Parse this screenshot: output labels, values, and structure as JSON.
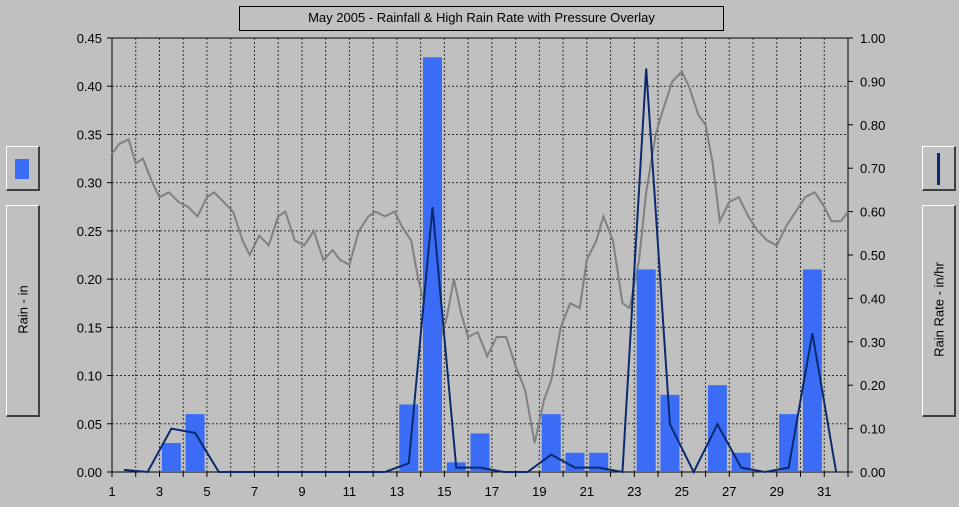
{
  "chart_data": {
    "type": "bar",
    "title": "May 2005 - Rainfall & High Rain Rate with Pressure Overlay",
    "left_axis_label": "Rain - in",
    "right_axis_label": "Rain Rate - in/hr",
    "x_ticks": [
      "1",
      "3",
      "5",
      "7",
      "9",
      "11",
      "13",
      "15",
      "17",
      "19",
      "21",
      "23",
      "25",
      "27",
      "29",
      "31"
    ],
    "left_ticks": [
      "0.00",
      "0.05",
      "0.10",
      "0.15",
      "0.20",
      "0.25",
      "0.30",
      "0.35",
      "0.40",
      "0.45"
    ],
    "right_ticks": [
      "0.00",
      "0.10",
      "0.20",
      "0.30",
      "0.40",
      "0.50",
      "0.60",
      "0.70",
      "0.80",
      "0.90",
      "1.00"
    ],
    "xlim": [
      1,
      32
    ],
    "ylim_left": [
      0,
      0.45
    ],
    "ylim_right": [
      0,
      1.0
    ],
    "grid": true,
    "colors": {
      "rain_bar": "#3a6cf5",
      "rain_rate_line": "#0a2a6e",
      "pressure_line": "#808080",
      "grid": "#303030"
    },
    "series": [
      {
        "type": "bar",
        "axis": "left",
        "days": [
          3,
          4,
          13,
          14,
          15,
          16,
          19,
          20,
          21,
          23,
          24,
          26,
          27,
          29,
          30
        ],
        "values": [
          0.03,
          0.06,
          0.07,
          0.43,
          0.01,
          0.04,
          0.06,
          0.02,
          0.02,
          0.21,
          0.08,
          0.09,
          0.02,
          0.06,
          0.21
        ]
      },
      {
        "type": "line",
        "axis": "right",
        "x": [
          1.5,
          2.5,
          3.5,
          4.5,
          5.5,
          12.5,
          13.5,
          14.5,
          15.5,
          16.5,
          17.5,
          18.5,
          19.5,
          20.5,
          21.5,
          22.5,
          23.5,
          24.5,
          25.5,
          26.5,
          27.5,
          28.5,
          29.5,
          30.5,
          31.5
        ],
        "values": [
          0.005,
          0.0,
          0.1,
          0.09,
          0.0,
          0.0,
          0.02,
          0.61,
          0.01,
          0.01,
          0.0,
          0.0,
          0.04,
          0.01,
          0.01,
          0.0,
          0.93,
          0.11,
          0.0,
          0.11,
          0.01,
          0.0,
          0.01,
          0.32,
          0.0
        ]
      },
      {
        "type": "line",
        "axis": "left",
        "x": [
          1,
          1.3,
          1.7,
          2.0,
          2.3,
          2.7,
          3.0,
          3.4,
          3.8,
          4.2,
          4.6,
          5.0,
          5.3,
          5.7,
          6.1,
          6.5,
          6.8,
          7.2,
          7.6,
          8.0,
          8.3,
          8.7,
          9.1,
          9.5,
          9.9,
          10.3,
          10.6,
          11.0,
          11.4,
          11.8,
          12.1,
          12.5,
          12.9,
          13.2,
          13.6,
          13.9,
          14.2,
          14.5,
          14.8,
          15.1,
          15.4,
          15.7,
          16.0,
          16.4,
          16.8,
          17.2,
          17.6,
          18.0,
          18.4,
          18.8,
          19.2,
          19.5,
          19.9,
          20.3,
          20.7,
          21.0,
          21.4,
          21.7,
          22.1,
          22.5,
          22.8,
          23.2,
          23.5,
          23.9,
          24.2,
          24.6,
          25.0,
          25.3,
          25.7,
          26.0,
          26.3,
          26.6,
          27.0,
          27.4,
          27.8,
          28.2,
          28.6,
          29.0,
          29.4,
          29.8,
          30.2,
          30.6,
          31.0,
          31.3,
          31.7,
          32.0
        ],
        "values": [
          0.33,
          0.34,
          0.345,
          0.32,
          0.325,
          0.3,
          0.285,
          0.29,
          0.28,
          0.275,
          0.265,
          0.285,
          0.29,
          0.28,
          0.27,
          0.24,
          0.225,
          0.245,
          0.235,
          0.265,
          0.27,
          0.24,
          0.235,
          0.25,
          0.22,
          0.23,
          0.22,
          0.215,
          0.25,
          0.265,
          0.27,
          0.265,
          0.27,
          0.255,
          0.24,
          0.2,
          0.17,
          0.15,
          0.135,
          0.16,
          0.2,
          0.165,
          0.14,
          0.145,
          0.12,
          0.14,
          0.14,
          0.11,
          0.085,
          0.03,
          0.075,
          0.095,
          0.15,
          0.175,
          0.17,
          0.22,
          0.24,
          0.265,
          0.24,
          0.175,
          0.17,
          0.22,
          0.29,
          0.35,
          0.375,
          0.405,
          0.415,
          0.4,
          0.37,
          0.36,
          0.32,
          0.26,
          0.28,
          0.285,
          0.265,
          0.25,
          0.24,
          0.235,
          0.255,
          0.27,
          0.285,
          0.29,
          0.275,
          0.26,
          0.26,
          0.27
        ]
      }
    ]
  },
  "legend": {
    "left_icon": "bar-swatch",
    "right_icon": "line-swatch"
  }
}
